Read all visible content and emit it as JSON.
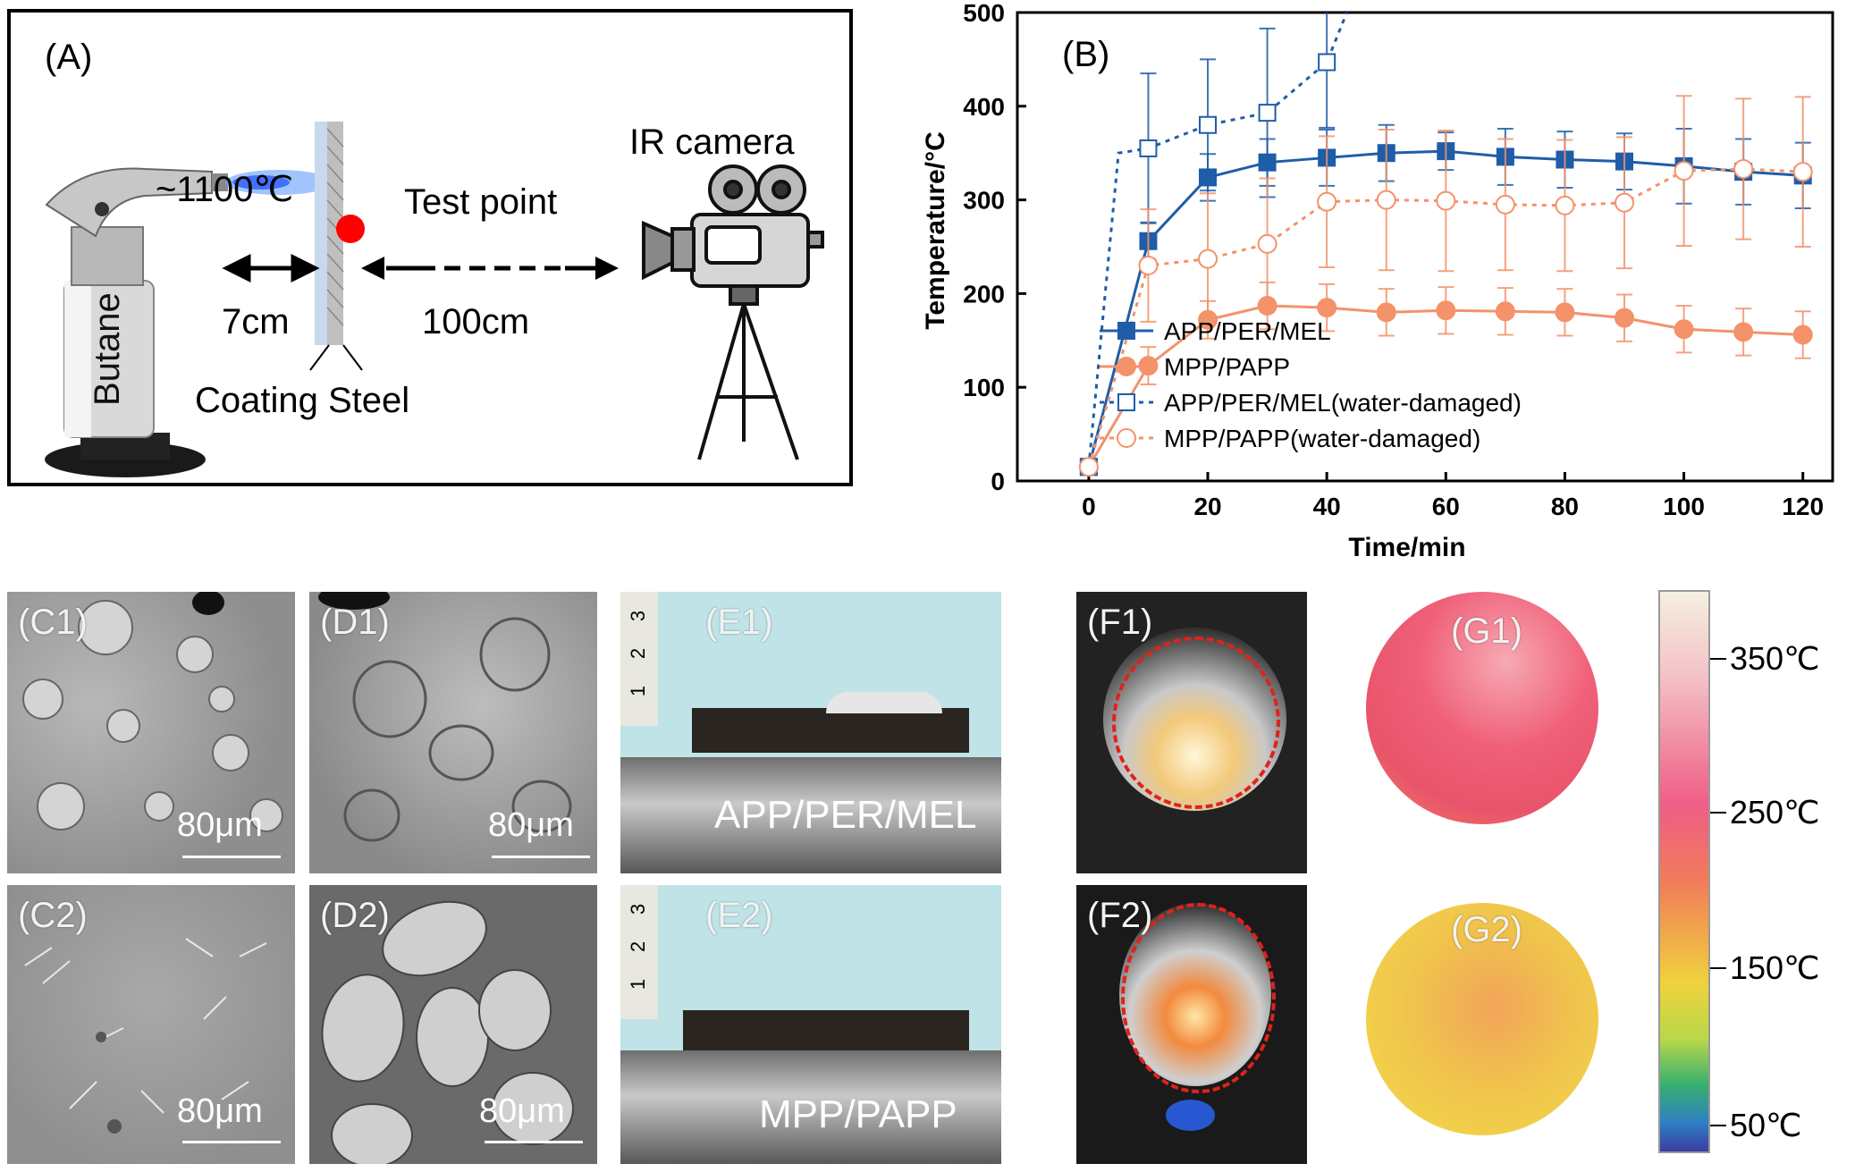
{
  "panelA": {
    "label": "(A)",
    "temperature": "~1100℃",
    "test_point": "Test point",
    "ir_camera": "IR camera",
    "distance_torch": "7cm",
    "distance_camera": "100cm",
    "coating_steel": "Coating Steel",
    "butane": "Butane"
  },
  "chart_data": {
    "type": "line",
    "panel_label": "(B)",
    "xlabel": "Time/min",
    "ylabel": "Temperature/°C",
    "xlim": [
      -12,
      125
    ],
    "ylim": [
      0,
      500
    ],
    "xticks": [
      0,
      20,
      40,
      60,
      80,
      100,
      120
    ],
    "yticks": [
      0,
      100,
      200,
      300,
      400,
      500
    ],
    "series": [
      {
        "name": "APP/PER/MEL",
        "color": "#1f5da8",
        "marker": "square-filled",
        "line": "solid",
        "x": [
          0,
          10,
          20,
          30,
          40,
          50,
          60,
          70,
          80,
          90,
          100,
          110,
          120
        ],
        "y": [
          15,
          256,
          324,
          340,
          345,
          350,
          352,
          346,
          343,
          341,
          336,
          330,
          326
        ],
        "err": [
          0,
          20,
          25,
          25,
          30,
          30,
          20,
          30,
          30,
          30,
          40,
          35,
          35
        ]
      },
      {
        "name": "MPP/PAPP",
        "color": "#f4926a",
        "marker": "circle-filled",
        "line": "solid",
        "x": [
          0,
          10,
          20,
          30,
          40,
          50,
          60,
          70,
          80,
          90,
          100,
          110,
          120
        ],
        "y": [
          15,
          123,
          172,
          187,
          185,
          180,
          182,
          181,
          180,
          174,
          162,
          159,
          156
        ],
        "err": [
          0,
          20,
          20,
          25,
          25,
          25,
          25,
          25,
          25,
          25,
          25,
          25,
          25
        ]
      },
      {
        "name": "APP/PER/MEL(water-damaged)",
        "color": "#1f5da8",
        "marker": "square-open",
        "line": "dotted",
        "x": [
          0,
          10,
          20,
          30,
          40
        ],
        "y": [
          15,
          355,
          380,
          393,
          447
        ],
        "err": [
          0,
          80,
          70,
          90,
          70
        ]
      },
      {
        "name": "MPP/PAPP(water-damaged)",
        "color": "#f4926a",
        "marker": "circle-open",
        "line": "dotted",
        "x": [
          0,
          10,
          20,
          30,
          40,
          50,
          60,
          70,
          80,
          90,
          100,
          110,
          120
        ],
        "y": [
          15,
          230,
          237,
          253,
          298,
          300,
          299,
          295,
          294,
          297,
          331,
          333,
          330
        ],
        "err": [
          0,
          60,
          70,
          70,
          70,
          75,
          75,
          70,
          70,
          70,
          80,
          75,
          80
        ]
      }
    ]
  },
  "images": {
    "c1": "(C1)",
    "c2": "(C2)",
    "d1": "(D1)",
    "d2": "(D2)",
    "e1": "(E1)",
    "e2": "(E2)",
    "f1": "(F1)",
    "f2": "(F2)",
    "g1": "(G1)",
    "g2": "(G2)",
    "scale_label": "80μm",
    "e1_caption": "APP/PER/MEL",
    "e2_caption": "MPP/PAPP",
    "ruler_marks": [
      "3",
      "2",
      "1"
    ]
  },
  "colorbar": {
    "ticks": [
      "350℃",
      "250℃",
      "150℃",
      "50℃"
    ]
  }
}
